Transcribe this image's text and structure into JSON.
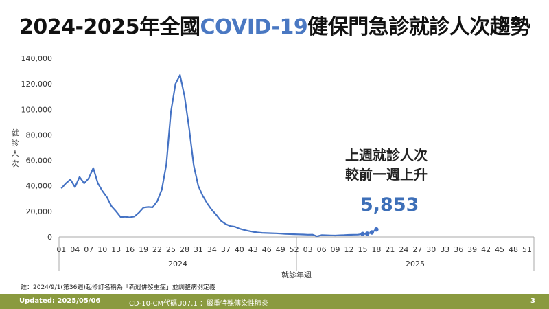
{
  "title": {
    "prefix": "2024-2025年全國",
    "highlight": "COVID-19",
    "suffix": "健保門急診就診人次趨勢"
  },
  "callout": {
    "line1": "上週就診人次",
    "line2": "較前一週上升",
    "value": "5,853"
  },
  "note": "註：2024/9/1(第36週)起修訂名稱為「新冠併發重症」並調整病例定義",
  "footer": {
    "updated": "Updated: 2025/05/06",
    "icd": "ICD-10-CM代碼U07.1 ：嚴重特殊傳染性肺炎",
    "page": "3"
  },
  "colors": {
    "line": "#4472c4",
    "accent": "#3d6fb8",
    "footer_bg": "#8a9a3f"
  },
  "chart_data": {
    "type": "line",
    "ylabel": "就診人次",
    "xlabel": "就診年週",
    "ylim": [
      0,
      140000
    ],
    "yticks": [
      "0",
      "20,000",
      "40,000",
      "60,000",
      "80,000",
      "100,000",
      "120,000",
      "140,000"
    ],
    "x_tick_labels": [
      "01",
      "04",
      "07",
      "10",
      "13",
      "16",
      "19",
      "22",
      "25",
      "28",
      "31",
      "34",
      "37",
      "40",
      "43",
      "46",
      "49",
      "52",
      "03",
      "06",
      "09",
      "12",
      "15",
      "18",
      "21",
      "24",
      "27",
      "30",
      "33",
      "36",
      "39",
      "42",
      "45",
      "48",
      "51"
    ],
    "year_labels": [
      "2024",
      "2025"
    ],
    "series": [
      {
        "year": "2024",
        "weeks": [
          1,
          2,
          3,
          4,
          5,
          6,
          7,
          8,
          9,
          10,
          11,
          12,
          13,
          14,
          15,
          16,
          17,
          18,
          19,
          20,
          21,
          22,
          23,
          24,
          25,
          26,
          27,
          28,
          29,
          30,
          31,
          32,
          33,
          34,
          35,
          36,
          37,
          38,
          39,
          40,
          41,
          42,
          43,
          44,
          45,
          46,
          47,
          48,
          49,
          50,
          51,
          52
        ],
        "values": [
          38000,
          42000,
          45000,
          39000,
          47000,
          42000,
          46000,
          54000,
          42000,
          36000,
          31000,
          24000,
          20000,
          15500,
          15800,
          15300,
          16000,
          19000,
          23000,
          23500,
          23200,
          28000,
          37000,
          57000,
          98000,
          120000,
          127000,
          110000,
          85000,
          56000,
          40000,
          32000,
          26000,
          21000,
          17000,
          12500,
          10000,
          8500,
          8000,
          6500,
          5500,
          4700,
          4000,
          3500,
          3200,
          3000,
          2900,
          2800,
          2600,
          2300,
          2200,
          2100
        ]
      },
      {
        "year": "2025",
        "weeks": [
          1,
          2,
          3,
          4,
          5,
          6,
          7,
          8,
          9,
          10,
          11,
          12,
          13,
          14,
          15,
          16,
          17,
          18
        ],
        "values": [
          2000,
          1900,
          1700,
          1800,
          500,
          1400,
          1300,
          1200,
          1100,
          1300,
          1400,
          1600,
          1700,
          1800,
          2300,
          2500,
          3500,
          5853
        ]
      }
    ],
    "highlight_weeks_2025": [
      15,
      16,
      17,
      18
    ]
  }
}
